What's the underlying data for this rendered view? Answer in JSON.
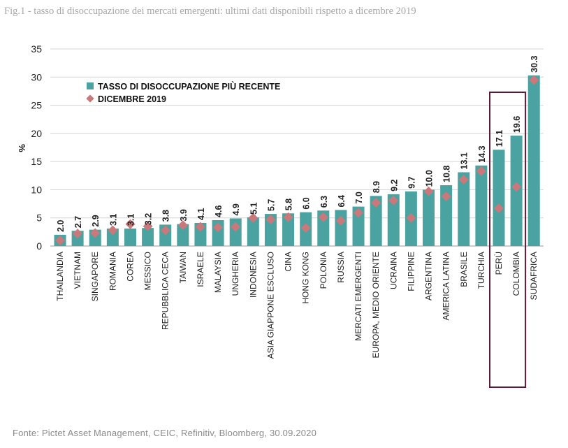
{
  "title": "Fig.1 -  tasso di disoccupazione dei mercati emergenti: ultimi dati disponibili rispetto a dicembre 2019",
  "source": "Fonte: Pictet Asset Management, CEIC, Refinitiv, Bloomberg, 30.09.2020",
  "colors": {
    "bar": "#4aa3a0",
    "marker": "#c9787b",
    "highlight_box": "#5a1a3a",
    "grid": "#d4d4d4"
  },
  "chart_data": {
    "type": "bar",
    "ylabel": "%",
    "ylim": [
      0,
      35
    ],
    "yticks": [
      0,
      5,
      10,
      15,
      20,
      25,
      30,
      35
    ],
    "grid": true,
    "legend_placement": "top-left",
    "categories": [
      "THAILANDIA",
      "VIETNAM",
      "SINGAPORE",
      "ROMANIA",
      "COREA",
      "MESSICO",
      "REPUBBLICA CECA",
      "TAIWAN",
      "ISRAELE",
      "MALAYSIA",
      "UNGHERIA",
      "INDONESIA",
      "ASIA GIAPPONE ESCLUSO",
      "CINA",
      "HONG KONG",
      "POLONIA",
      "RUSSIA",
      "MERCATI EMERGENTI",
      "EUROPA, MEDIO ORIENTE",
      "UCRAINA",
      "FILIPPINE",
      "ARGENTINA",
      "AMERICA LATINA",
      "BRASILE",
      "TURCHIA",
      "PERÙ",
      "COLOMBIA",
      "SUDAFRICA"
    ],
    "series": [
      {
        "name": "TASSO DI DISOCCUPAZIONE PIÙ RECENTE",
        "type": "bar",
        "values": [
          2.0,
          2.7,
          2.9,
          3.1,
          3.1,
          3.2,
          3.8,
          3.9,
          4.1,
          4.6,
          4.9,
          5.1,
          5.7,
          5.8,
          6.0,
          6.3,
          6.4,
          7.0,
          8.9,
          9.2,
          9.7,
          10.0,
          10.8,
          13.1,
          14.3,
          17.1,
          19.6,
          30.3
        ],
        "labels": [
          "2.0",
          "2.7",
          "2.9",
          "3.1",
          "3.1",
          "3.2",
          "3.8",
          "3.9",
          "4.1",
          "4.6",
          "4.9",
          "5.1",
          "5.7",
          "5.8",
          "6.0",
          "6.3",
          "6.4",
          "7.0",
          "8.9",
          "9.2",
          "9.7",
          "10.0",
          "10.8",
          "13.1",
          "14.3",
          "17.1",
          "19.6",
          "30.3"
        ]
      },
      {
        "name": "DICEMBRE 2019",
        "type": "marker",
        "values": [
          1.0,
          2.2,
          2.3,
          2.8,
          3.9,
          3.5,
          2.8,
          3.7,
          3.4,
          3.3,
          3.4,
          5.0,
          4.7,
          5.1,
          3.2,
          5.1,
          4.5,
          5.9,
          7.7,
          8.1,
          5.0,
          9.7,
          8.8,
          11.8,
          13.3,
          6.7,
          10.5,
          29.5
        ]
      }
    ],
    "highlighted_categories": [
      "PERÙ",
      "COLOMBIA"
    ]
  }
}
